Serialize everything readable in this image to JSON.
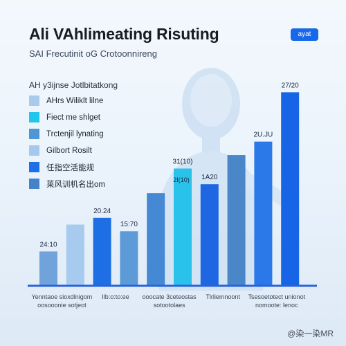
{
  "header": {
    "title": "Ali VAhlimeating Risuting",
    "subtitle": "SAI Frecutinit oG Crotoonnireng",
    "badge": "ayat"
  },
  "legend": {
    "title": "AH y3ijnse Jotlbitatkong",
    "items": [
      {
        "label": "AHrs Wiliklt lilne",
        "color": "#a8cbed"
      },
      {
        "label": "Fiect me shlget",
        "color": "#22c6ea"
      },
      {
        "label": "Trctenjil lynating",
        "color": "#4d97d7"
      },
      {
        "label": "Gilbort Rosilt",
        "color": "#a4c8ee"
      },
      {
        "label": "任指空活能规",
        "color": "#1f6fe6"
      },
      {
        "label": "莱风训机名出om",
        "color": "#4483c9"
      }
    ]
  },
  "chart_data": {
    "type": "bar",
    "title": "Ali VAhlimeating Risuting",
    "subtitle": "SAI Frecutinit oG Crotoonnireng",
    "xlabel": "",
    "ylabel": "",
    "ylim": [
      0,
      100
    ],
    "grid": false,
    "legend_position": "left",
    "bars": [
      {
        "value": 15,
        "color": "#6fa3da",
        "label": "24:10"
      },
      {
        "value": 27,
        "color": "#a6cbef",
        "label": ""
      },
      {
        "value": 30,
        "color": "#1d6fe3",
        "label": "20.24"
      },
      {
        "value": 24,
        "color": "#5d9bd8",
        "label": "15:70"
      },
      {
        "value": 41,
        "color": "#4588d4",
        "label": ""
      },
      {
        "value": 52,
        "color": "#29c2ea",
        "label": "31(10)"
      },
      {
        "value": 45,
        "color": "#1f67e2",
        "label": "1A20"
      },
      {
        "value": 58,
        "color": "#4a86c8",
        "label": ""
      },
      {
        "value": 64,
        "color": "#2b78e8",
        "label": "2U.JU"
      },
      {
        "value": 86,
        "color": "#1764e6",
        "label": "27/20"
      }
    ],
    "annotations": [
      "2I(10)"
    ],
    "category_labels": [
      {
        "line1": "Yenntaoe sioxdlnigom",
        "line2": "oosooonie sotjeot"
      },
      {
        "line1": "Ilb:o:to:ee",
        "line2": ""
      },
      {
        "line1": "ooocate 3ceteostas",
        "line2": "sotootolaes"
      },
      {
        "line1": "Tlrliemnoont",
        "line2": ""
      },
      {
        "line1": "Tsesoetotect unionot",
        "line2": "nomoote: lenoc"
      }
    ]
  },
  "watermark": "@染一染MR"
}
